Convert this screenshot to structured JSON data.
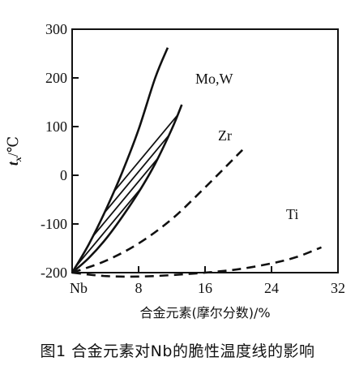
{
  "caption": "图1 合金元素对Nb的脆性温度线的影响",
  "chart_data": {
    "type": "line",
    "xlabel": "合金元素(摩尔分数)/%",
    "ylabel": "t_x/℃",
    "ylabel_main": "t",
    "ylabel_sub": "x",
    "ylabel_unit": "/℃",
    "xlim": [
      0,
      32
    ],
    "ylim": [
      -200,
      300
    ],
    "x_ticks": [
      {
        "value": 0,
        "label": "Nb"
      },
      {
        "value": 8,
        "label": "8"
      },
      {
        "value": 16,
        "label": "16"
      },
      {
        "value": 24,
        "label": "24"
      },
      {
        "value": 32,
        "label": "32"
      }
    ],
    "y_ticks": [
      {
        "value": 300,
        "label": "300"
      },
      {
        "value": 200,
        "label": "200"
      },
      {
        "value": 100,
        "label": "100"
      },
      {
        "value": 0,
        "label": "0"
      },
      {
        "value": -100,
        "label": "-100"
      },
      {
        "value": -200,
        "label": "-200"
      }
    ],
    "band": {
      "name": "Mo,W",
      "style": "hatched",
      "upper": {
        "x": [
          0,
          2,
          4,
          6,
          8,
          10,
          11.5
        ],
        "y": [
          -200,
          -142,
          -73,
          5,
          94,
          200,
          262
        ]
      },
      "lower": {
        "x": [
          0,
          2,
          4,
          6,
          8,
          10,
          12,
          13.2
        ],
        "y": [
          -200,
          -170,
          -132,
          -86,
          -35,
          24,
          95,
          145
        ]
      }
    },
    "series": [
      {
        "name": "Zr",
        "style": "dashed",
        "x": [
          0,
          4,
          8,
          12,
          16,
          20.5
        ],
        "y": [
          -200,
          -176,
          -140,
          -90,
          -25,
          52
        ]
      },
      {
        "name": "Ti",
        "style": "dashed",
        "x": [
          0,
          4,
          8,
          12,
          16,
          20,
          24,
          27,
          30
        ],
        "y": [
          -200,
          -207,
          -208,
          -205,
          -200,
          -193,
          -181,
          -168,
          -148
        ]
      }
    ]
  }
}
